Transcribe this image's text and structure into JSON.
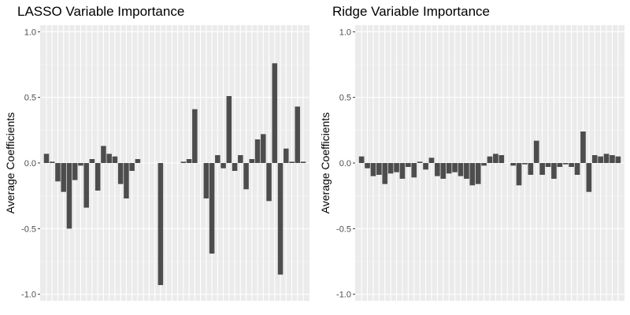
{
  "chart_data": [
    {
      "type": "bar",
      "title": "LASSO Variable Importance",
      "xlabel": "",
      "ylabel": "Average Coefficients",
      "ylim": [
        -1.05,
        1.05
      ],
      "yticks": [
        "1.0",
        "0.5",
        "0.0",
        "-0.5",
        "-1.0"
      ],
      "grid": true,
      "legend": "none",
      "bar_color": "#4d4d4d",
      "panel_color": "#ebebeb",
      "values": [
        0.07,
        0.01,
        -0.14,
        -0.22,
        -0.5,
        -0.13,
        -0.02,
        -0.34,
        0.03,
        -0.21,
        0.13,
        0.07,
        0.05,
        -0.16,
        -0.27,
        -0.06,
        0.03,
        0.0,
        0.0,
        0.0,
        -0.93,
        0.0,
        0.0,
        0.0,
        0.01,
        0.03,
        0.41,
        0.0,
        -0.27,
        -0.69,
        0.06,
        -0.04,
        0.51,
        -0.06,
        0.06,
        -0.2,
        0.03,
        0.18,
        0.22,
        -0.29,
        0.76,
        -0.85,
        0.11,
        0.01,
        0.43,
        0.01
      ]
    },
    {
      "type": "bar",
      "title": "Ridge Variable Importance",
      "xlabel": "",
      "ylabel": "Average Coefficients",
      "ylim": [
        -1.05,
        1.05
      ],
      "yticks": [
        "1.0",
        "0.5",
        "0.0",
        "-0.5",
        "-1.0"
      ],
      "grid": true,
      "legend": "none",
      "bar_color": "#4d4d4d",
      "panel_color": "#ebebeb",
      "values": [
        0.05,
        -0.04,
        -0.1,
        -0.09,
        -0.16,
        -0.08,
        -0.07,
        -0.12,
        -0.03,
        -0.11,
        0.01,
        -0.05,
        0.04,
        -0.1,
        -0.12,
        -0.08,
        -0.07,
        -0.1,
        -0.12,
        -0.17,
        -0.16,
        -0.02,
        0.05,
        0.07,
        0.06,
        0.0,
        -0.02,
        -0.17,
        -0.01,
        -0.09,
        0.17,
        -0.09,
        -0.03,
        -0.12,
        -0.03,
        -0.01,
        -0.03,
        -0.09,
        0.24,
        -0.22,
        0.06,
        0.05,
        0.07,
        0.06,
        0.05
      ]
    }
  ]
}
